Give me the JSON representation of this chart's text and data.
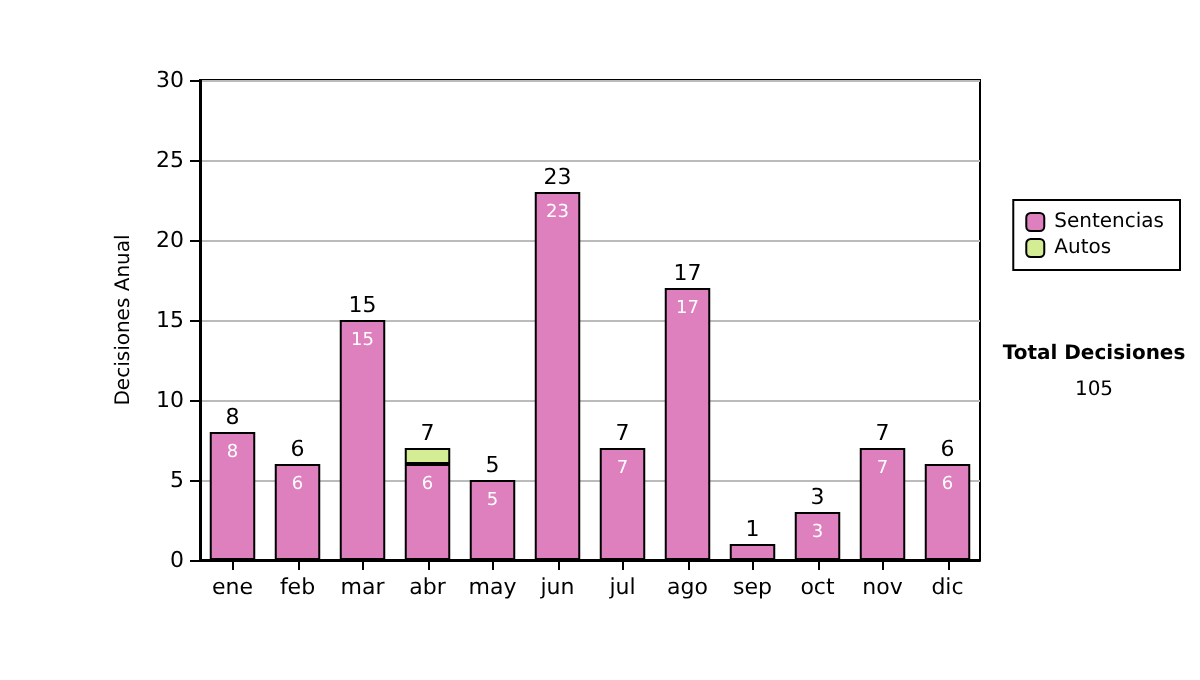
{
  "chart_data": {
    "type": "bar",
    "stacked": true,
    "ylabel": "Decisiones Anual",
    "categories": [
      "ene",
      "feb",
      "mar",
      "abr",
      "may",
      "jun",
      "jul",
      "ago",
      "sep",
      "oct",
      "nov",
      "dic"
    ],
    "series": [
      {
        "name": "Sentencias",
        "color": "#dd80bd",
        "values": [
          8,
          6,
          15,
          6,
          5,
          23,
          7,
          17,
          1,
          3,
          7,
          6
        ],
        "value_labels": [
          "8",
          "6",
          "15",
          "6",
          "5",
          "23",
          "7",
          "17",
          null,
          "3",
          "7",
          "6"
        ]
      },
      {
        "name": "Autos",
        "color": "#d4ec94",
        "values": [
          null,
          null,
          null,
          1,
          null,
          null,
          null,
          null,
          null,
          null,
          null,
          null
        ]
      }
    ],
    "totals": [
      "8",
      "6",
      "15",
      "7",
      "5",
      "23",
      "7",
      "17",
      "1",
      "3",
      "7",
      "6"
    ],
    "ylim": [
      0,
      30
    ],
    "yticks": [
      0,
      5,
      10,
      15,
      20,
      25,
      30
    ],
    "grid": "y",
    "legend": "right",
    "annotations": [
      "Total Decisiones",
      "105"
    ]
  }
}
